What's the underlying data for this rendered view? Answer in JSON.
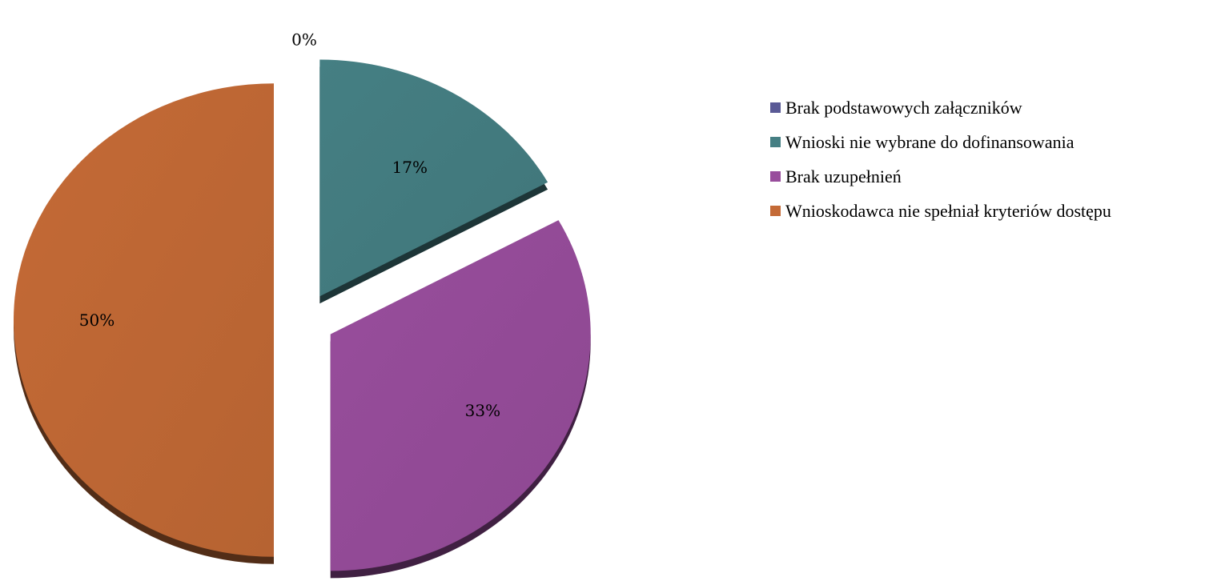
{
  "chart_data": {
    "type": "pie",
    "categories": [
      "Brak podstawowych załączników",
      "Wnioski nie  wybrane do dofinansowania",
      "Brak uzupełnień",
      "Wnioskodawca nie spełniał kryteriów dostępu"
    ],
    "values": [
      0,
      17,
      33,
      50
    ],
    "data_labels": [
      "0%",
      "17%",
      "33%",
      "50%"
    ],
    "colors": [
      "#5a5a96",
      "#457f83",
      "#984d9c",
      "#c46a36"
    ],
    "exploded": true,
    "legend_position": "right"
  }
}
